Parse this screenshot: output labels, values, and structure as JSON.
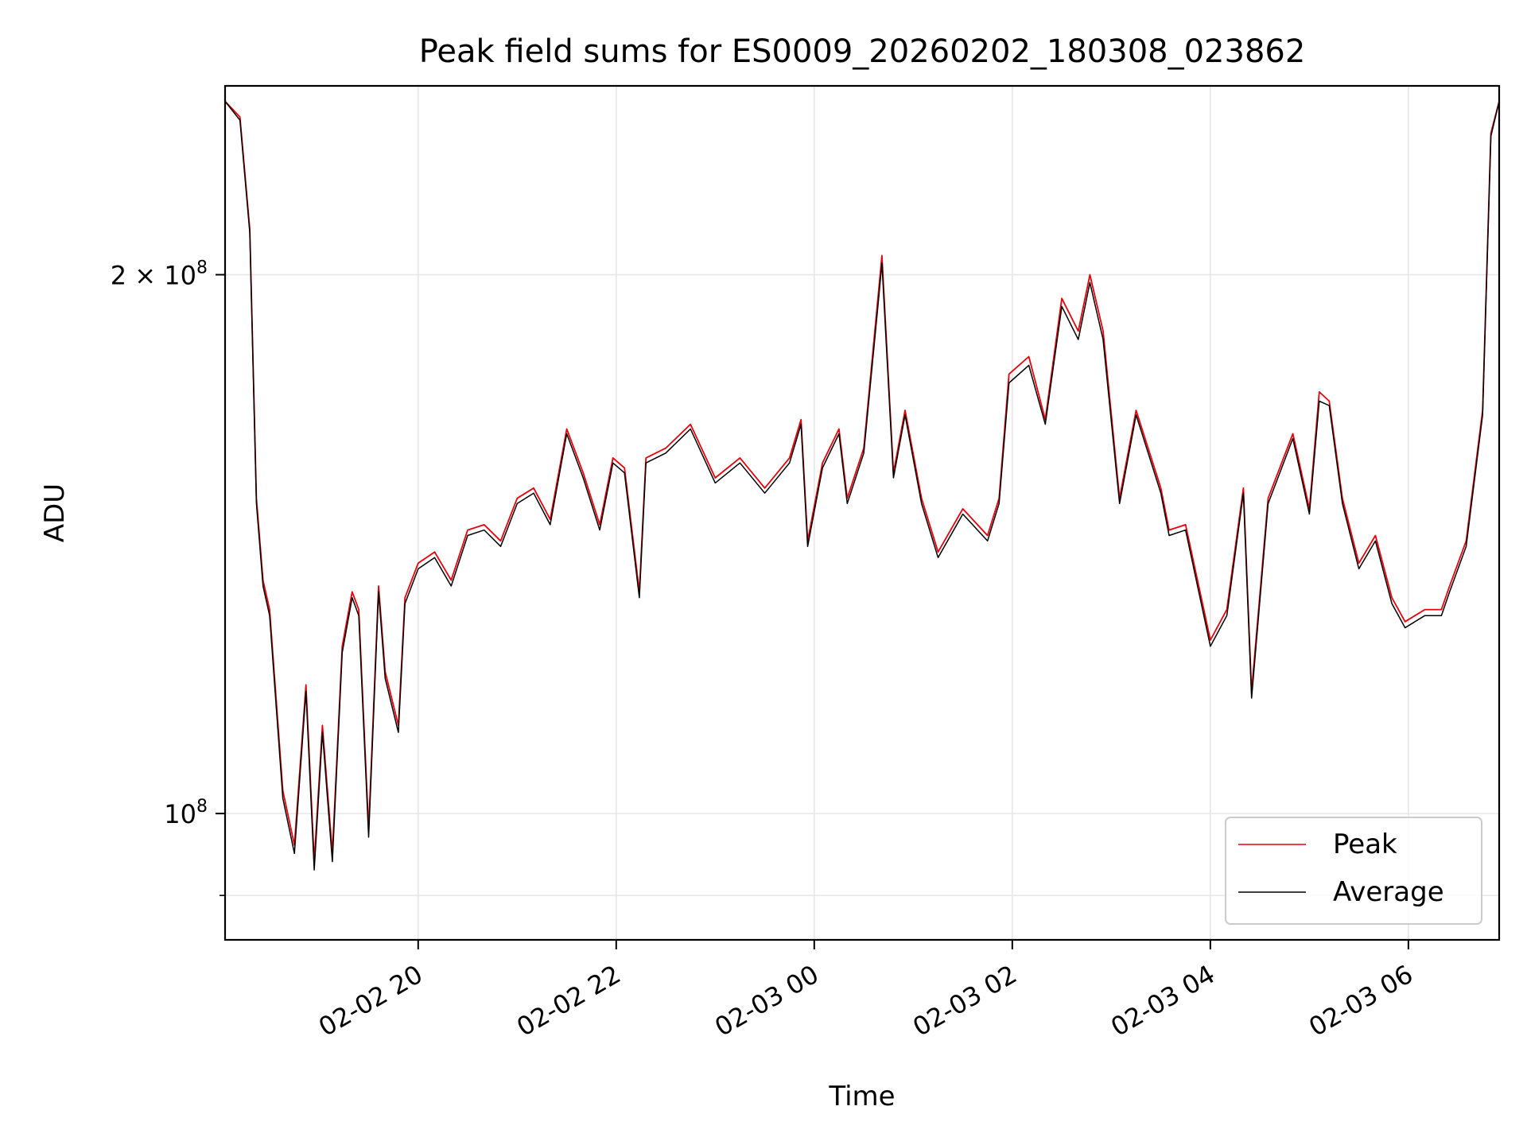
{
  "chart_data": {
    "type": "line",
    "title": "Peak field sums for ES0009_20260202_180308_023862",
    "xlabel": "Time",
    "ylabel": "ADU",
    "xlim": [
      "2026-02-02 18:03",
      "2026-02-03 06:55"
    ],
    "ylim": [
      85000000,
      255000000
    ],
    "yscale": "log",
    "grid": true,
    "legend_position": "lower-right",
    "x_ticks": [
      {
        "value": "2026-02-02 20:00",
        "label": "02-02 20"
      },
      {
        "value": "2026-02-02 22:00",
        "label": "02-02 22"
      },
      {
        "value": "2026-02-03 00:00",
        "label": "02-03 00"
      },
      {
        "value": "2026-02-03 02:00",
        "label": "02-03 02"
      },
      {
        "value": "2026-02-03 04:00",
        "label": "02-03 04"
      },
      {
        "value": "2026-02-03 06:00",
        "label": "02-03 06"
      }
    ],
    "y_major_ticks": [
      {
        "value": 100000000,
        "base": "10",
        "exp": "8"
      },
      {
        "value": 200000000,
        "coef": "2 × ",
        "base": "10",
        "exp": "8"
      }
    ],
    "y_minor_ticks": [
      90000000
    ],
    "series": [
      {
        "name": "Peak",
        "color": "#e8000b",
        "x": [
          "2026-02-02 18:03",
          "2026-02-02 18:12",
          "2026-02-02 18:18",
          "2026-02-02 18:22",
          "2026-02-02 18:26",
          "2026-02-02 18:30",
          "2026-02-02 18:38",
          "2026-02-02 18:45",
          "2026-02-02 18:52",
          "2026-02-02 18:57",
          "2026-02-02 19:02",
          "2026-02-02 19:08",
          "2026-02-02 19:14",
          "2026-02-02 19:20",
          "2026-02-02 19:24",
          "2026-02-02 19:30",
          "2026-02-02 19:36",
          "2026-02-02 19:40",
          "2026-02-02 19:48",
          "2026-02-02 19:52",
          "2026-02-02 20:00",
          "2026-02-02 20:10",
          "2026-02-02 20:20",
          "2026-02-02 20:30",
          "2026-02-02 20:40",
          "2026-02-02 20:50",
          "2026-02-02 21:00",
          "2026-02-02 21:10",
          "2026-02-02 21:20",
          "2026-02-02 21:30",
          "2026-02-02 21:40",
          "2026-02-02 21:50",
          "2026-02-02 21:58",
          "2026-02-02 22:05",
          "2026-02-02 22:14",
          "2026-02-02 22:18",
          "2026-02-02 22:30",
          "2026-02-02 22:45",
          "2026-02-02 23:00",
          "2026-02-02 23:15",
          "2026-02-02 23:30",
          "2026-02-02 23:45",
          "2026-02-02 23:52",
          "2026-02-02 23:56",
          "2026-02-03 00:05",
          "2026-02-03 00:15",
          "2026-02-03 00:20",
          "2026-02-03 00:30",
          "2026-02-03 00:39",
          "2026-02-03 00:41",
          "2026-02-03 00:48",
          "2026-02-03 00:55",
          "2026-02-03 01:05",
          "2026-02-03 01:15",
          "2026-02-03 01:30",
          "2026-02-03 01:45",
          "2026-02-03 01:52",
          "2026-02-03 01:58",
          "2026-02-03 02:10",
          "2026-02-03 02:20",
          "2026-02-03 02:30",
          "2026-02-03 02:40",
          "2026-02-03 02:47",
          "2026-02-03 02:55",
          "2026-02-03 03:05",
          "2026-02-03 03:15",
          "2026-02-03 03:30",
          "2026-02-03 03:35",
          "2026-02-03 03:45",
          "2026-02-03 04:00",
          "2026-02-03 04:10",
          "2026-02-03 04:20",
          "2026-02-03 04:25",
          "2026-02-03 04:35",
          "2026-02-03 04:50",
          "2026-02-03 05:00",
          "2026-02-03 05:06",
          "2026-02-03 05:12",
          "2026-02-03 05:20",
          "2026-02-03 05:30",
          "2026-02-03 05:40",
          "2026-02-03 05:50",
          "2026-02-03 05:58",
          "2026-02-03 06:10",
          "2026-02-03 06:20",
          "2026-02-03 06:25",
          "2026-02-03 06:35",
          "2026-02-03 06:45",
          "2026-02-03 06:50",
          "2026-02-03 06:55"
        ],
        "y": [
          250000000,
          245000000,
          212000000,
          150000000,
          135000000,
          130000000,
          103000000,
          96000000,
          118000000,
          94000000,
          112000000,
          95000000,
          124000000,
          133000000,
          130000000,
          98000000,
          134000000,
          120000000,
          112000000,
          132000000,
          138000000,
          140000000,
          135000000,
          144000000,
          145000000,
          142000000,
          150000000,
          152000000,
          146000000,
          164000000,
          155000000,
          145000000,
          158000000,
          156000000,
          133000000,
          158000000,
          160000000,
          165000000,
          154000000,
          158000000,
          152000000,
          158000000,
          166000000,
          142000000,
          157000000,
          164000000,
          150000000,
          160000000,
          196000000,
          205000000,
          155000000,
          168000000,
          150000000,
          140000000,
          148000000,
          143000000,
          150000000,
          176000000,
          180000000,
          166000000,
          194000000,
          186000000,
          200000000,
          186000000,
          150000000,
          168000000,
          152000000,
          144000000,
          145000000,
          125000000,
          130000000,
          152000000,
          117000000,
          150000000,
          163000000,
          148000000,
          172000000,
          170000000,
          150000000,
          138000000,
          143000000,
          132000000,
          128000000,
          130000000,
          130000000,
          134000000,
          142000000,
          168000000,
          240000000,
          250000000
        ]
      },
      {
        "name": "Average",
        "color": "#000000",
        "x": [
          "2026-02-02 18:03",
          "2026-02-02 18:12",
          "2026-02-02 18:18",
          "2026-02-02 18:22",
          "2026-02-02 18:26",
          "2026-02-02 18:30",
          "2026-02-02 18:38",
          "2026-02-02 18:45",
          "2026-02-02 18:52",
          "2026-02-02 18:57",
          "2026-02-02 19:02",
          "2026-02-02 19:08",
          "2026-02-02 19:14",
          "2026-02-02 19:20",
          "2026-02-02 19:24",
          "2026-02-02 19:30",
          "2026-02-02 19:36",
          "2026-02-02 19:40",
          "2026-02-02 19:48",
          "2026-02-02 19:52",
          "2026-02-02 20:00",
          "2026-02-02 20:10",
          "2026-02-02 20:20",
          "2026-02-02 20:30",
          "2026-02-02 20:40",
          "2026-02-02 20:50",
          "2026-02-02 21:00",
          "2026-02-02 21:10",
          "2026-02-02 21:20",
          "2026-02-02 21:30",
          "2026-02-02 21:40",
          "2026-02-02 21:50",
          "2026-02-02 21:58",
          "2026-02-02 22:05",
          "2026-02-02 22:14",
          "2026-02-02 22:18",
          "2026-02-02 22:30",
          "2026-02-02 22:45",
          "2026-02-02 23:00",
          "2026-02-02 23:15",
          "2026-02-02 23:30",
          "2026-02-02 23:45",
          "2026-02-02 23:52",
          "2026-02-02 23:56",
          "2026-02-03 00:05",
          "2026-02-03 00:15",
          "2026-02-03 00:20",
          "2026-02-03 00:30",
          "2026-02-03 00:39",
          "2026-02-03 00:41",
          "2026-02-03 00:48",
          "2026-02-03 00:55",
          "2026-02-03 01:05",
          "2026-02-03 01:15",
          "2026-02-03 01:30",
          "2026-02-03 01:45",
          "2026-02-03 01:52",
          "2026-02-03 01:58",
          "2026-02-03 02:10",
          "2026-02-03 02:20",
          "2026-02-03 02:30",
          "2026-02-03 02:40",
          "2026-02-03 02:47",
          "2026-02-03 02:55",
          "2026-02-03 03:05",
          "2026-02-03 03:15",
          "2026-02-03 03:30",
          "2026-02-03 03:35",
          "2026-02-03 03:45",
          "2026-02-03 04:00",
          "2026-02-03 04:10",
          "2026-02-03 04:20",
          "2026-02-03 04:25",
          "2026-02-03 04:35",
          "2026-02-03 04:50",
          "2026-02-03 05:00",
          "2026-02-03 05:06",
          "2026-02-03 05:12",
          "2026-02-03 05:20",
          "2026-02-03 05:30",
          "2026-02-03 05:40",
          "2026-02-03 05:50",
          "2026-02-03 05:58",
          "2026-02-03 06:10",
          "2026-02-03 06:20",
          "2026-02-03 06:25",
          "2026-02-03 06:35",
          "2026-02-03 06:45",
          "2026-02-03 06:50",
          "2026-02-03 06:55"
        ],
        "y": [
          250000000,
          244000000,
          211000000,
          149000000,
          134000000,
          129000000,
          102000000,
          95000000,
          117000000,
          93000000,
          111000000,
          94000000,
          123000000,
          132000000,
          129000000,
          97000000,
          133000000,
          119000000,
          111000000,
          131000000,
          137000000,
          139000000,
          134000000,
          143000000,
          144000000,
          141000000,
          149000000,
          151000000,
          145000000,
          163000000,
          154000000,
          144000000,
          157000000,
          155000000,
          132000000,
          157000000,
          159000000,
          164000000,
          153000000,
          157000000,
          151000000,
          157000000,
          165000000,
          141000000,
          156000000,
          163000000,
          149000000,
          159000000,
          194000000,
          203000000,
          154000000,
          167000000,
          149000000,
          139000000,
          147000000,
          142000000,
          149000000,
          174000000,
          178000000,
          165000000,
          192000000,
          184000000,
          198000000,
          184000000,
          149000000,
          167000000,
          151000000,
          143000000,
          144000000,
          124000000,
          129000000,
          151000000,
          116000000,
          149000000,
          162000000,
          147000000,
          170000000,
          169000000,
          149000000,
          137000000,
          142000000,
          131000000,
          127000000,
          129000000,
          129000000,
          133000000,
          141000000,
          167000000,
          239000000,
          250000000
        ]
      }
    ]
  }
}
